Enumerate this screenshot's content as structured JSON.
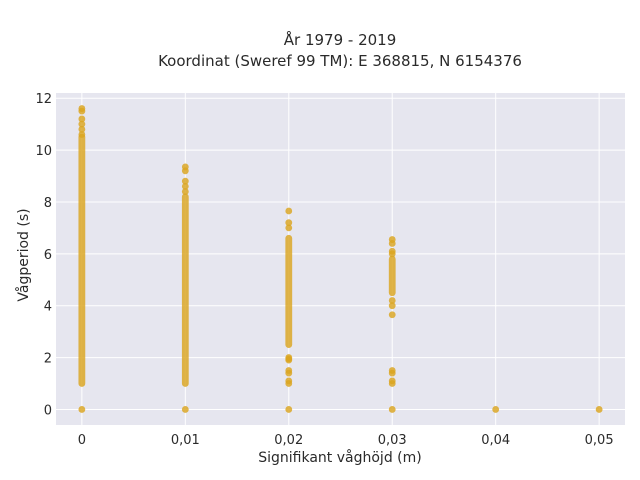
{
  "colors": {
    "background": "#ffffff",
    "plot_background": "#e6e6ef",
    "grid": "#ffffff",
    "marker": "#daa520",
    "text": "#2a2a2a"
  },
  "chart_data": {
    "type": "scatter",
    "title": "År 1979 - 2019",
    "subtitle": "Koordinat (Sweref 99 TM): E 368815, N 6154376",
    "xlabel": "Signifikant våghöjd (m)",
    "ylabel": "Vågperiod (s)",
    "xlim": [
      -0.0025,
      0.0525
    ],
    "ylim": [
      -0.6,
      12.2
    ],
    "x_ticks": [
      0,
      0.01,
      0.02,
      0.03,
      0.04,
      0.05
    ],
    "x_tick_labels": [
      "0",
      "0,01",
      "0,02",
      "0,03",
      "0,04",
      "0,05"
    ],
    "y_ticks": [
      0,
      2,
      4,
      6,
      8,
      10,
      12
    ],
    "y_tick_labels": [
      "0",
      "2",
      "4",
      "6",
      "8",
      "10",
      "12"
    ],
    "grid": true,
    "legend": "none",
    "series": [
      {
        "color": "#daa520",
        "points_by_x": [
          {
            "x": 0,
            "y_ranges": [
              [
                1.0,
                10.5
              ]
            ],
            "y_points": [
              0,
              10.6,
              10.8,
              11.0,
              11.2,
              11.5,
              11.6
            ]
          },
          {
            "x": 0.01,
            "y_ranges": [
              [
                1.0,
                8.2
              ]
            ],
            "y_points": [
              0,
              8.4,
              8.6,
              8.8,
              9.2,
              9.35
            ]
          },
          {
            "x": 0.02,
            "y_ranges": [
              [
                2.5,
                6.6
              ]
            ],
            "y_points": [
              0,
              1.0,
              1.1,
              1.4,
              1.5,
              1.9,
              1.95,
              2.0,
              7.0,
              7.2,
              7.65
            ]
          },
          {
            "x": 0.03,
            "y_ranges": [
              [
                4.5,
                5.8
              ]
            ],
            "y_points": [
              0,
              1.0,
              1.1,
              1.4,
              1.5,
              3.65,
              4.0,
              4.2,
              6.0,
              6.1,
              6.4,
              6.55
            ]
          },
          {
            "x": 0.04,
            "y_ranges": [],
            "y_points": [
              0
            ]
          },
          {
            "x": 0.05,
            "y_ranges": [],
            "y_points": [
              0
            ]
          }
        ]
      }
    ]
  }
}
